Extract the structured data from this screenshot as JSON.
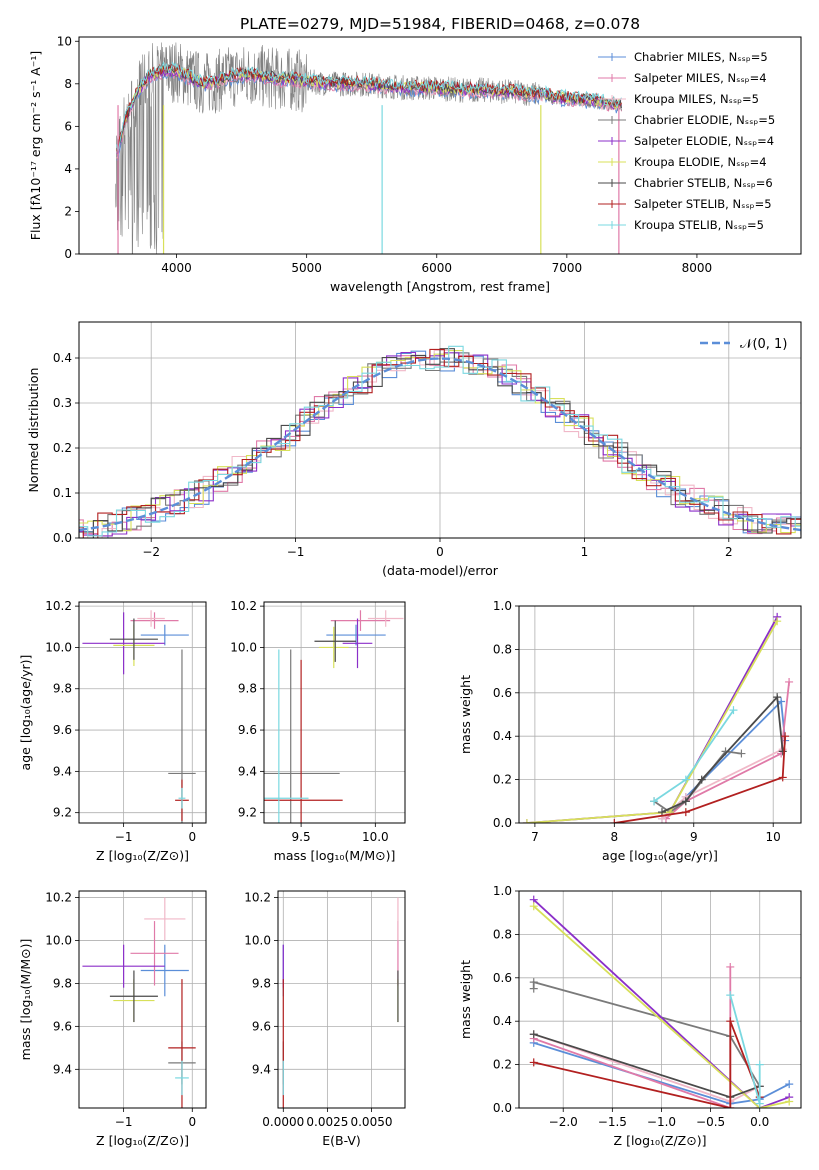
{
  "figure_title": "PLATE=0279, MJD=51984, FIBERID=0468, z=0.078",
  "colors": {
    "series": [
      "#5b8ed8",
      "#e07aa8",
      "#f0b8c8",
      "#7a7a7a",
      "#8b2fc9",
      "#d8e05a",
      "#4a4a4a",
      "#b22020",
      "#7ad8e0"
    ],
    "grid": "#b0b0b0",
    "normal": "#5b8ed8",
    "spectrum_gray": "#808080"
  },
  "chart_data": [
    {
      "type": "line",
      "xlabel": "wavelength [Angstrom, rest frame]",
      "ylabel": "Flux [fλ10⁻¹⁷ erg cm⁻² s⁻¹ A⁻¹]",
      "xlim": [
        3250,
        8800
      ],
      "ylim": [
        0,
        10.2
      ],
      "xticks": [
        "4000",
        "5000",
        "6000",
        "7000",
        "8000"
      ],
      "yticks": [
        "0",
        "2",
        "4",
        "6",
        "8",
        "10"
      ],
      "grid": false,
      "legend_position": "right",
      "legend": [
        "Chabrier MILES, Nₛₛₚ=5",
        "Salpeter MILES, Nₛₛₚ=4",
        "Kroupa MILES, Nₛₛₚ=5",
        "Chabrier ELODIE, Nₛₛₚ=5",
        "Salpeter ELODIE, Nₛₛₚ=4",
        "Kroupa ELODIE, Nₛₛₚ=4",
        "Chabrier STELIB, Nₛₛₚ=6",
        "Salpeter STELIB, Nₛₛₚ=5",
        "Kroupa STELIB, Nₛₛₚ=5"
      ],
      "model_x": [
        3550,
        3600,
        3700,
        3800,
        3900,
        4000,
        4100,
        4200,
        4300,
        4400,
        4500,
        4600,
        4700,
        4800,
        4900,
        5000,
        5200,
        5400,
        5600,
        5800,
        6000,
        6200,
        6400,
        6600,
        6800,
        7000,
        7200,
        7400
      ],
      "model_y": [
        4.8,
        6.2,
        7.6,
        8.4,
        8.6,
        8.6,
        8.3,
        8.0,
        8.1,
        8.3,
        8.4,
        8.4,
        8.3,
        8.2,
        8.2,
        8.1,
        8.0,
        8.0,
        7.9,
        7.8,
        7.8,
        7.7,
        7.7,
        7.6,
        7.5,
        7.3,
        7.2,
        7.0
      ]
    },
    {
      "type": "line",
      "xlabel": "(data-model)/error",
      "ylabel": "Normed distribution",
      "xlim": [
        -2.5,
        2.5
      ],
      "ylim": [
        0,
        0.48
      ],
      "xticks": [
        "−2",
        "−1",
        "0",
        "1",
        "2"
      ],
      "yticks": [
        "0.0",
        "0.1",
        "0.2",
        "0.3",
        "0.4"
      ],
      "grid": true,
      "legend_position": "top-right",
      "legend": [
        "𝒩(0, 1)"
      ]
    },
    {
      "type": "scatter",
      "xlabel": "Z [log₁₀(Z/Z⊙)]",
      "ylabel": "age  [log₁₀(age/yr)]",
      "xlim": [
        -1.65,
        0.2
      ],
      "ylim": [
        9.15,
        10.22
      ],
      "xticks": [
        "−1",
        "0"
      ],
      "yticks": [
        "9.2",
        "9.4",
        "9.6",
        "9.8",
        "10.0",
        "10.2"
      ],
      "grid": true,
      "points": [
        {
          "x": -0.4,
          "y": 10.06,
          "xerr": 0.35,
          "yerr": 0.05
        },
        {
          "x": -0.55,
          "y": 10.13,
          "xerr": 0.35,
          "yerr": 0.04
        },
        {
          "x": -0.6,
          "y": 10.14,
          "xerr": 0.2,
          "yerr": 0.04
        },
        {
          "x": -0.15,
          "y": 9.39,
          "xerr": 0.2,
          "yerr": 0.6
        },
        {
          "x": -1.0,
          "y": 10.02,
          "xerr": 0.6,
          "yerr": 0.15
        },
        {
          "x": -0.85,
          "y": 10.01,
          "xerr": 0.3,
          "yerr": 0.1
        },
        {
          "x": -0.85,
          "y": 10.04,
          "xerr": 0.35,
          "yerr": 0.1
        },
        {
          "x": -0.15,
          "y": 9.26,
          "xerr": 0.1,
          "yerr": 0.1
        },
        {
          "x": -0.15,
          "y": 9.27,
          "xerr": 0.05,
          "yerr": 0.05
        }
      ]
    },
    {
      "type": "scatter",
      "xlabel": "mass [log₁₀(M/M⊙)]",
      "ylabel": "",
      "xlim": [
        9.25,
        10.2
      ],
      "ylim": [
        9.15,
        10.22
      ],
      "xticks": [
        "9.5",
        "10.0"
      ],
      "yticks": [
        "9.2",
        "9.4",
        "9.6",
        "9.8",
        "10.0",
        "10.2"
      ],
      "grid": true,
      "points": [
        {
          "x": 9.87,
          "y": 10.06,
          "xerr": 0.2,
          "yerr": 0.05
        },
        {
          "x": 9.9,
          "y": 10.13,
          "xerr": 0.2,
          "yerr": 0.05
        },
        {
          "x": 10.07,
          "y": 10.14,
          "xerr": 0.12,
          "yerr": 0.04
        },
        {
          "x": 9.43,
          "y": 9.39,
          "xerr": 0.33,
          "yerr": 0.6
        },
        {
          "x": 9.88,
          "y": 10.02,
          "xerr": 0.1,
          "yerr": 0.12
        },
        {
          "x": 9.72,
          "y": 10.0,
          "xerr": 0.1,
          "yerr": 0.1
        },
        {
          "x": 9.73,
          "y": 10.03,
          "xerr": 0.14,
          "yerr": 0.1
        },
        {
          "x": 9.5,
          "y": 9.26,
          "xerr": 0.28,
          "yerr": 0.68
        },
        {
          "x": 9.35,
          "y": 9.27,
          "xerr": 0.2,
          "yerr": 0.72
        }
      ]
    },
    {
      "type": "line",
      "xlabel": "age  [log₁₀(age/yr)]",
      "ylabel": "mass weight",
      "xlim": [
        6.8,
        10.35
      ],
      "ylim": [
        0,
        1.0
      ],
      "xticks": [
        "7",
        "8",
        "9",
        "10"
      ],
      "yticks": [
        "0.0",
        "0.2",
        "0.4",
        "0.6",
        "0.8",
        "1.0"
      ],
      "grid": true,
      "series": [
        {
          "x": [
            8.6,
            8.9,
            10.1,
            10.15
          ],
          "y": [
            0.02,
            0.12,
            0.56,
            0.38
          ]
        },
        {
          "x": [
            8.65,
            8.9,
            10.1,
            10.2
          ],
          "y": [
            0.02,
            0.1,
            0.32,
            0.65
          ]
        },
        {
          "x": [
            8.6,
            8.9,
            10.12
          ],
          "y": [
            0.02,
            0.12,
            0.34
          ]
        },
        {
          "x": [
            8.5,
            8.7,
            8.9,
            9.4,
            9.6
          ],
          "y": [
            0.1,
            0.05,
            0.1,
            0.33,
            0.32
          ]
        },
        {
          "x": [
            6.9,
            8.7,
            10.05
          ],
          "y": [
            0.0,
            0.05,
            0.95
          ]
        },
        {
          "x": [
            6.9,
            8.7,
            10.05
          ],
          "y": [
            0.0,
            0.05,
            0.93
          ]
        },
        {
          "x": [
            8.6,
            8.9,
            9.1,
            10.05,
            10.12
          ],
          "y": [
            0.05,
            0.1,
            0.2,
            0.58,
            0.33
          ]
        },
        {
          "x": [
            8.0,
            8.9,
            10.12,
            10.15
          ],
          "y": [
            0.0,
            0.05,
            0.21,
            0.4
          ]
        },
        {
          "x": [
            8.5,
            8.9,
            9.5
          ],
          "y": [
            0.1,
            0.2,
            0.52
          ]
        }
      ]
    },
    {
      "type": "scatter",
      "xlabel": "Z [log₁₀(Z/Z⊙)]",
      "ylabel": "mass [log₁₀(M/M⊙)]",
      "xlim": [
        -1.65,
        0.2
      ],
      "ylim": [
        9.22,
        10.23
      ],
      "xticks": [
        "−1",
        "0"
      ],
      "yticks": [
        "9.4",
        "9.6",
        "9.8",
        "10.0",
        "10.2"
      ],
      "grid": true,
      "points": [
        {
          "x": -0.4,
          "y": 9.86,
          "xerr": 0.35,
          "yerr": 0.12
        },
        {
          "x": -0.55,
          "y": 9.94,
          "xerr": 0.35,
          "yerr": 0.15
        },
        {
          "x": -0.4,
          "y": 10.1,
          "xerr": 0.3,
          "yerr": 0.1
        },
        {
          "x": -0.15,
          "y": 9.43,
          "xerr": 0.2,
          "yerr": 0.1
        },
        {
          "x": -1.0,
          "y": 9.88,
          "xerr": 0.6,
          "yerr": 0.1
        },
        {
          "x": -0.85,
          "y": 9.72,
          "xerr": 0.3,
          "yerr": 0.1
        },
        {
          "x": -0.85,
          "y": 9.74,
          "xerr": 0.35,
          "yerr": 0.12
        },
        {
          "x": -0.15,
          "y": 9.5,
          "xerr": 0.2,
          "yerr": 0.32
        },
        {
          "x": -0.15,
          "y": 9.36,
          "xerr": 0.1,
          "yerr": 0.08
        }
      ]
    },
    {
      "type": "scatter",
      "xlabel": "E(B-V)",
      "ylabel": "",
      "xlim": [
        -0.0003,
        0.0069
      ],
      "ylim": [
        9.22,
        10.23
      ],
      "xticks": [
        "0.0000",
        "0.0025",
        "0.0050"
      ],
      "yticks": [
        "9.4",
        "9.6",
        "9.8",
        "10.0",
        "10.2"
      ],
      "grid": true,
      "points": [
        {
          "x": 0.0,
          "y": 9.86,
          "yerr": 0.12
        },
        {
          "x": 0.0065,
          "y": 9.94,
          "yerr": 0.15
        },
        {
          "x": 0.0065,
          "y": 10.1,
          "yerr": 0.1
        },
        {
          "x": 0.0,
          "y": 9.43,
          "yerr": 0.1
        },
        {
          "x": 0.0,
          "y": 9.88,
          "yerr": 0.1
        },
        {
          "x": 0.0065,
          "y": 9.72,
          "yerr": 0.1
        },
        {
          "x": 0.0065,
          "y": 9.74,
          "yerr": 0.12
        },
        {
          "x": 0.0,
          "y": 9.5,
          "yerr": 0.32
        },
        {
          "x": 0.0,
          "y": 9.36,
          "yerr": 0.08
        }
      ]
    },
    {
      "type": "line",
      "xlabel": "Z [log₁₀(Z/Z⊙)]",
      "ylabel": "mass weight",
      "xlim": [
        -2.45,
        0.42
      ],
      "ylim": [
        0,
        1.0
      ],
      "xticks": [
        "−2.0",
        "−1.5",
        "−1.0",
        "−0.5",
        "0.0"
      ],
      "yticks": [
        "0.0",
        "0.2",
        "0.4",
        "0.6",
        "0.8",
        "1.0"
      ],
      "grid": true,
      "series": [
        {
          "x": [
            -2.3,
            -0.3,
            0.0,
            0.3
          ],
          "y": [
            0.3,
            0.02,
            0.04,
            0.11
          ]
        },
        {
          "x": [
            -2.3,
            -0.3,
            -0.3
          ],
          "y": [
            0.32,
            0.0,
            0.65
          ]
        },
        {
          "x": [
            -2.3,
            -0.3,
            0.0
          ],
          "y": [
            0.34,
            0.03,
            0.1
          ]
        },
        {
          "x": [
            -2.3,
            -2.3,
            -0.3,
            0.0
          ],
          "y": [
            0.55,
            0.58,
            0.33,
            0.1
          ]
        },
        {
          "x": [
            -2.3,
            0.0,
            0.3
          ],
          "y": [
            0.96,
            0.0,
            0.05
          ]
        },
        {
          "x": [
            -2.3,
            0.0,
            0.3
          ],
          "y": [
            0.93,
            0.0,
            0.03
          ]
        },
        {
          "x": [
            -2.3,
            -0.3,
            0.0
          ],
          "y": [
            0.34,
            0.05,
            0.1
          ]
        },
        {
          "x": [
            -2.3,
            -0.3,
            -0.3,
            0.0
          ],
          "y": [
            0.21,
            0.0,
            0.4,
            0.05
          ]
        },
        {
          "x": [
            -0.3,
            0.0,
            0.0
          ],
          "y": [
            0.52,
            0.02,
            0.2
          ]
        }
      ]
    }
  ]
}
